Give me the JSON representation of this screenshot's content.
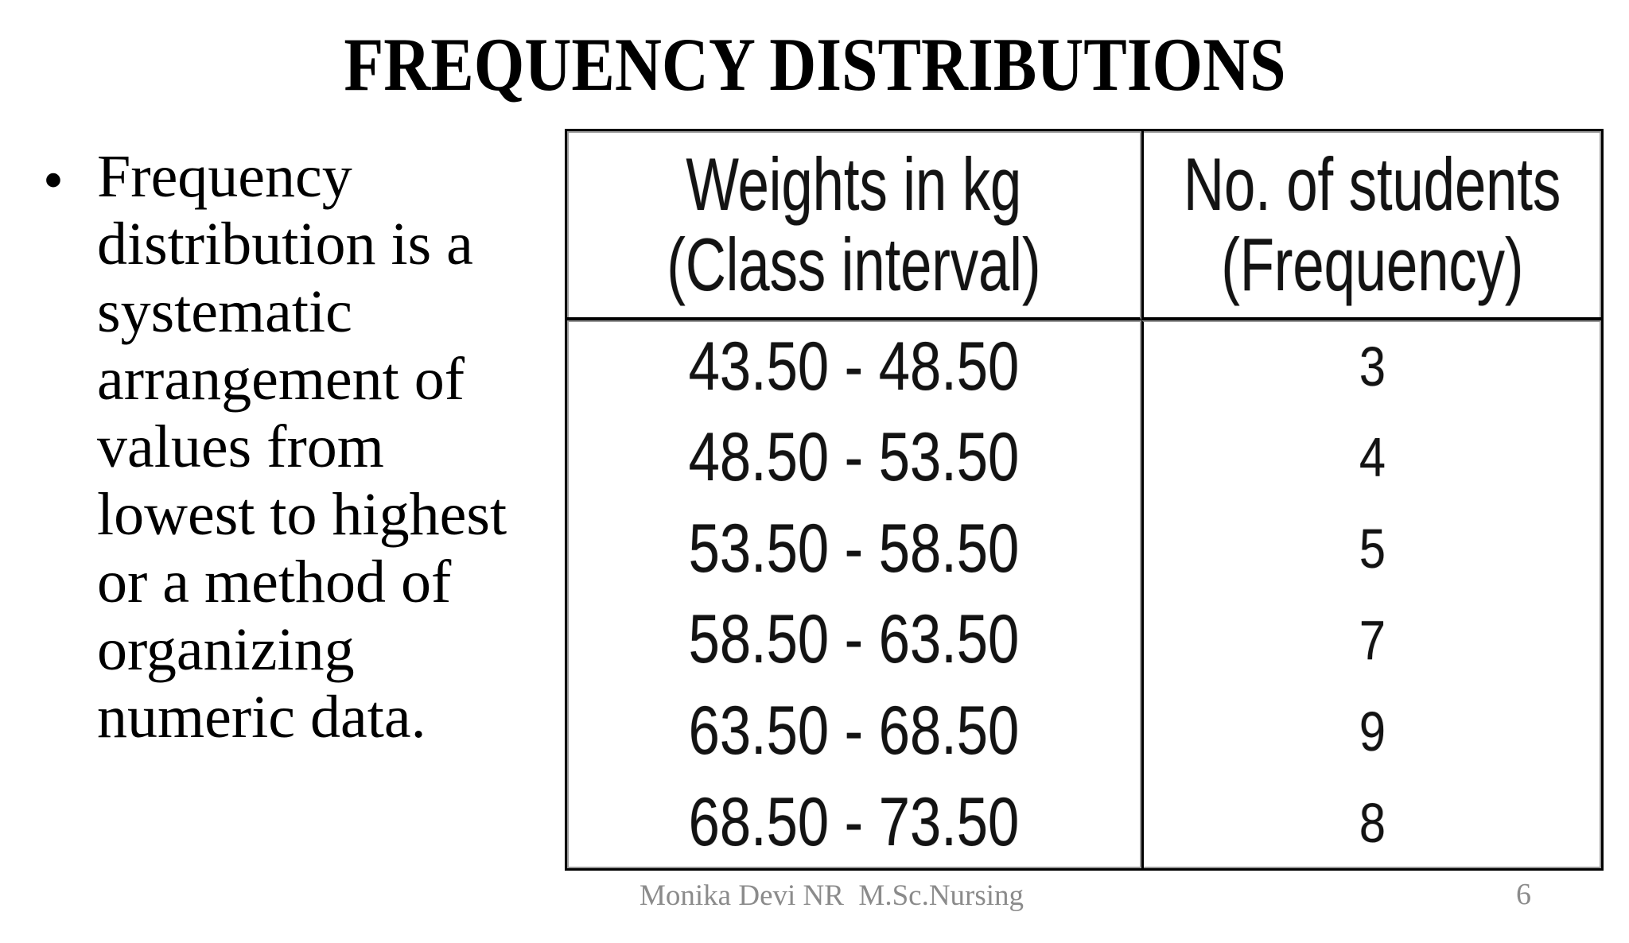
{
  "slide": {
    "title": "FREQUENCY DISTRIBUTIONS",
    "bullet": {
      "marker": "•",
      "text": "Frequency distribution is a systematic arrangement of values from lowest to highest or a method of organizing numeric data.",
      "lines": [
        "Frequency",
        "distribution is a",
        "systematic",
        "arrangement of",
        "values from",
        "lowest to highest",
        "or a method of",
        "organizing",
        "numeric data."
      ]
    },
    "table": {
      "columns": [
        {
          "line1": "Weights in kg",
          "line2": "(Class interval)"
        },
        {
          "line1": "No. of students",
          "line2": "(Frequency)"
        }
      ],
      "rows": [
        {
          "interval": "43.50 - 48.50",
          "frequency": "3"
        },
        {
          "interval": "48.50 - 53.50",
          "frequency": "4"
        },
        {
          "interval": "53.50 - 58.50",
          "frequency": "5"
        },
        {
          "interval": "58.50 - 63.50",
          "frequency": "7"
        },
        {
          "interval": "63.50 - 68.50",
          "frequency": "9"
        },
        {
          "interval": "68.50 - 73.50",
          "frequency": "8"
        }
      ]
    },
    "footer": {
      "author": "Monika Devi NR  M.Sc.Nursing",
      "page_number": "6"
    },
    "colors": {
      "background": "#ffffff",
      "text": "#000000",
      "table_border": "#000000",
      "table_border_shadow": "#9a9a9a",
      "footer_gray": "#8b8b8b"
    }
  },
  "chart_data": {
    "type": "table",
    "title": "FREQUENCY DISTRIBUTIONS",
    "columns": [
      "Weights in kg (Class interval)",
      "No. of students (Frequency)"
    ],
    "categories": [
      "43.50 - 48.50",
      "48.50 - 53.50",
      "53.50 - 58.50",
      "58.50 - 63.50",
      "63.50 - 68.50",
      "68.50 - 73.50"
    ],
    "values": [
      3,
      4,
      5,
      7,
      9,
      8
    ]
  }
}
